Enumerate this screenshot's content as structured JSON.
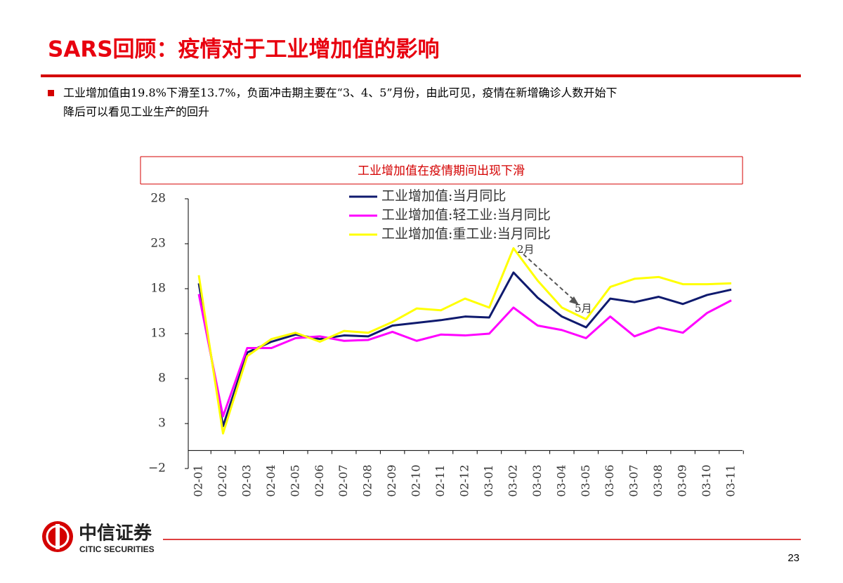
{
  "header": {
    "title": "SARS回顾：疫情对于工业增加值的影响"
  },
  "bullets": [
    "工业增加值由19.8%下滑至13.7%，负面冲击期主要在“3、4、5”月份，由此可见，疫情在新增确诊人数开始下",
    "降后可以看见工业生产的回升"
  ],
  "chart_data": {
    "type": "line",
    "title": "工业增加值在疫情期间出现下滑",
    "categories": [
      "02-01",
      "02-02",
      "02-03",
      "02-04",
      "02-05",
      "02-06",
      "02-07",
      "02-08",
      "02-09",
      "02-10",
      "02-11",
      "02-12",
      "03-01",
      "03-02",
      "03-03",
      "03-04",
      "03-05",
      "03-06",
      "03-07",
      "03-08",
      "03-09",
      "03-10",
      "03-11"
    ],
    "series": [
      {
        "name": "工业增加值:当月同比",
        "color": "#0f1a6e",
        "values": [
          18.6,
          2.7,
          10.9,
          12.1,
          12.9,
          12.4,
          12.8,
          12.7,
          13.9,
          14.2,
          14.5,
          14.9,
          14.8,
          19.8,
          17.0,
          14.9,
          13.7,
          16.9,
          16.5,
          17.1,
          16.3,
          17.3,
          17.9
        ]
      },
      {
        "name": "工业增加值:轻工业:当月同比",
        "color": "#ff00ff",
        "values": [
          17.4,
          3.8,
          11.4,
          11.4,
          12.5,
          12.7,
          12.2,
          12.3,
          13.2,
          12.2,
          12.9,
          12.8,
          13.0,
          15.9,
          13.9,
          13.4,
          12.5,
          14.9,
          12.7,
          13.7,
          13.1,
          15.3,
          16.7
        ]
      },
      {
        "name": "工业增加值:重工业:当月同比",
        "color": "#ffff00",
        "values": [
          19.5,
          1.9,
          10.5,
          12.4,
          13.1,
          12.1,
          13.3,
          13.1,
          14.3,
          15.8,
          15.6,
          16.9,
          15.9,
          22.5,
          18.9,
          15.9,
          14.6,
          18.2,
          19.1,
          19.3,
          18.5,
          18.5,
          18.6
        ]
      }
    ],
    "ylim": [
      -2,
      28
    ],
    "yticks": [
      {
        "value": -2,
        "label": "−2"
      },
      3,
      8,
      13,
      18,
      23,
      28
    ],
    "annotations": [
      "2月",
      "5月"
    ],
    "legend": "upper-left"
  },
  "footer": {
    "logo_cn": "中信证券",
    "logo_en": "CITIC SECURITIES",
    "page": "23"
  }
}
